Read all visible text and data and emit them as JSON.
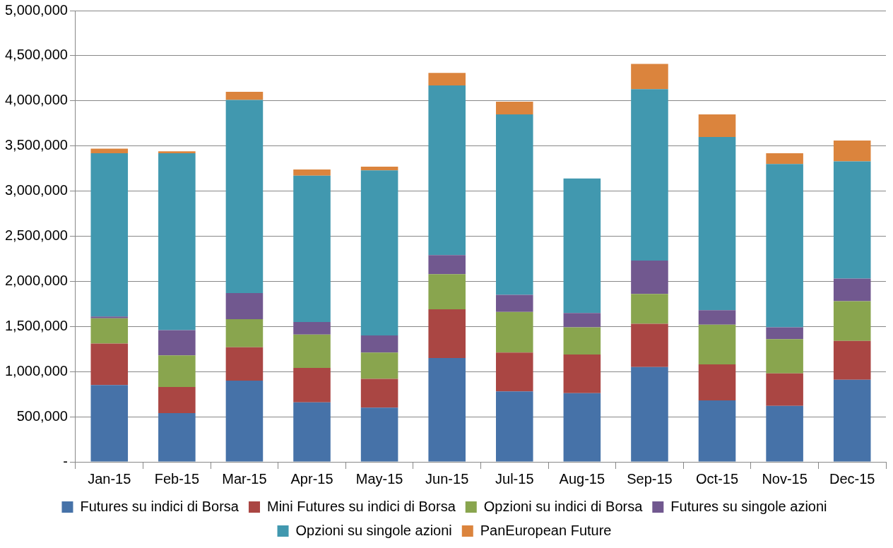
{
  "chart_data": {
    "type": "bar",
    "stacked": true,
    "categories": [
      "Jan-15",
      "Feb-15",
      "Mar-15",
      "Apr-15",
      "May-15",
      "Jun-15",
      "Jul-15",
      "Aug-15",
      "Sep-15",
      "Oct-15",
      "Nov-15",
      "Dec-15"
    ],
    "series": [
      {
        "name": "Futures su indici di Borsa",
        "color": "#4672a8",
        "values": [
          850000,
          540000,
          900000,
          660000,
          600000,
          1150000,
          780000,
          760000,
          1050000,
          680000,
          620000,
          910000
        ]
      },
      {
        "name": "Mini Futures su indici di Borsa",
        "color": "#aa4643",
        "values": [
          460000,
          290000,
          370000,
          380000,
          320000,
          540000,
          430000,
          430000,
          480000,
          400000,
          360000,
          430000
        ]
      },
      {
        "name": "Opzioni su indici di Borsa",
        "color": "#89a54e",
        "values": [
          280000,
          350000,
          310000,
          370000,
          290000,
          390000,
          450000,
          300000,
          330000,
          440000,
          380000,
          440000
        ]
      },
      {
        "name": "Futures su singole azioni",
        "color": "#71588f",
        "values": [
          20000,
          280000,
          290000,
          140000,
          190000,
          210000,
          190000,
          160000,
          370000,
          160000,
          130000,
          250000
        ]
      },
      {
        "name": "Opzioni su singole azioni",
        "color": "#4198af",
        "values": [
          1810000,
          1960000,
          2140000,
          1620000,
          1830000,
          1880000,
          2000000,
          1490000,
          1900000,
          1920000,
          1810000,
          1300000
        ]
      },
      {
        "name": "PanEuropean Future",
        "color": "#db843d",
        "values": [
          50000,
          20000,
          90000,
          70000,
          40000,
          140000,
          140000,
          0,
          280000,
          250000,
          120000,
          230000
        ]
      }
    ],
    "ylim": [
      0,
      5000000
    ],
    "yticks": [
      {
        "value": 0,
        "label": "-"
      },
      {
        "value": 500000,
        "label": "500,000"
      },
      {
        "value": 1000000,
        "label": "1,000,000"
      },
      {
        "value": 1500000,
        "label": "1,500,000"
      },
      {
        "value": 2000000,
        "label": "2,000,000"
      },
      {
        "value": 2500000,
        "label": "2,500,000"
      },
      {
        "value": 3000000,
        "label": "3,000,000"
      },
      {
        "value": 3500000,
        "label": "3,500,000"
      },
      {
        "value": 4000000,
        "label": "4,000,000"
      },
      {
        "value": 4500000,
        "label": "4,500,000"
      },
      {
        "value": 5000000,
        "label": "5,000,000"
      }
    ],
    "grid": "y",
    "legend": "bottom"
  }
}
